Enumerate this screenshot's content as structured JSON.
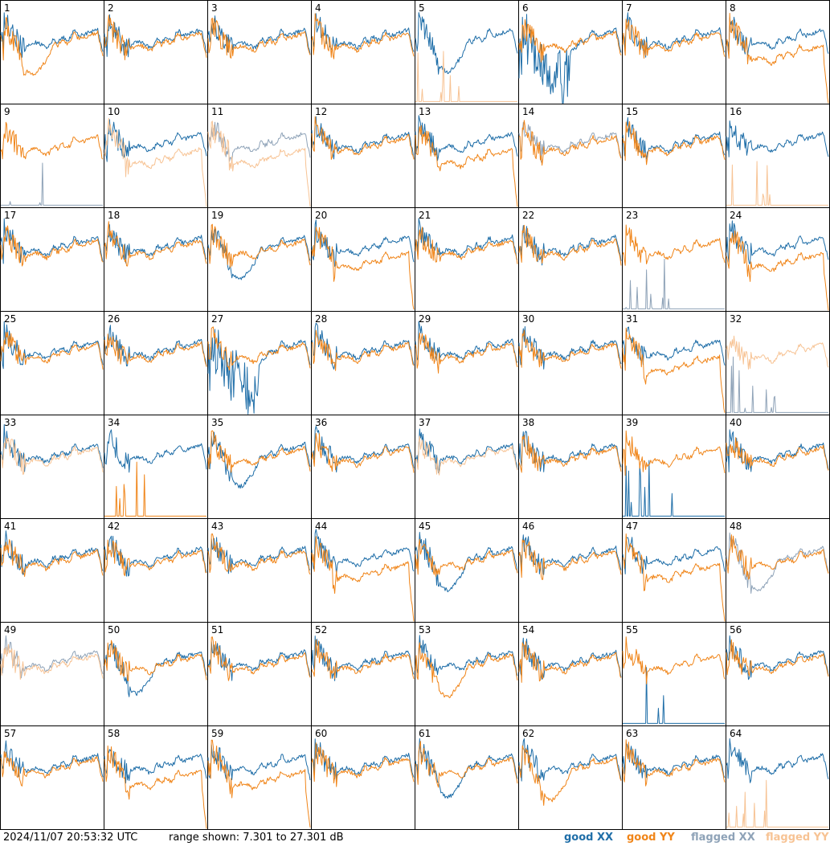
{
  "footer": {
    "timestamp": "2024/11/07 20:53:32 UTC",
    "range_label": "range shown: 7.301 to 27.301 dB"
  },
  "legend": [
    {
      "label": "good XX",
      "color": "#1f6ea8"
    },
    {
      "label": "good YY",
      "color": "#f08519"
    },
    {
      "label": "flagged XX",
      "color": "#8fa3b8"
    },
    {
      "label": "flagged YY",
      "color": "#f7c394"
    }
  ],
  "chart_data": {
    "type": "line",
    "layout": "8x8 grid of small multiples",
    "ylim": [
      7.301,
      27.301
    ],
    "yunit": "dB",
    "panels": [
      {
        "id": "1",
        "xx": "good",
        "yy": "good",
        "xx_shape": "normal",
        "yy_shape": "dip"
      },
      {
        "id": "2",
        "xx": "good",
        "yy": "good",
        "xx_shape": "normal",
        "yy_shape": "normal"
      },
      {
        "id": "3",
        "xx": "good",
        "yy": "good",
        "xx_shape": "normal",
        "yy_shape": "normal"
      },
      {
        "id": "4",
        "xx": "good",
        "yy": "good",
        "xx_shape": "normal",
        "yy_shape": "normal"
      },
      {
        "id": "5",
        "xx": "good",
        "yy": "flagged",
        "xx_shape": "dip",
        "yy_shape": "dead"
      },
      {
        "id": "6",
        "xx": "good",
        "yy": "good",
        "xx_shape": "spiky",
        "yy_shape": "normal"
      },
      {
        "id": "7",
        "xx": "good",
        "yy": "good",
        "xx_shape": "normal",
        "yy_shape": "normal"
      },
      {
        "id": "8",
        "xx": "good",
        "yy": "good",
        "xx_shape": "normal",
        "yy_shape": "low"
      },
      {
        "id": "9",
        "xx": "flagged",
        "yy": "good",
        "xx_shape": "dead",
        "yy_shape": "normal"
      },
      {
        "id": "10",
        "xx": "good",
        "yy": "flagged",
        "xx_shape": "normal",
        "yy_shape": "low"
      },
      {
        "id": "11",
        "xx": "flagged",
        "yy": "flagged",
        "xx_shape": "normal",
        "yy_shape": "low"
      },
      {
        "id": "12",
        "xx": "good",
        "yy": "good",
        "xx_shape": "normal",
        "yy_shape": "normal"
      },
      {
        "id": "13",
        "xx": "good",
        "yy": "good",
        "xx_shape": "normal",
        "yy_shape": "low"
      },
      {
        "id": "14",
        "xx": "flagged",
        "yy": "good",
        "xx_shape": "normal",
        "yy_shape": "normal"
      },
      {
        "id": "15",
        "xx": "good",
        "yy": "good",
        "xx_shape": "normal",
        "yy_shape": "normal"
      },
      {
        "id": "16",
        "xx": "good",
        "yy": "flagged",
        "xx_shape": "normal",
        "yy_shape": "dead"
      },
      {
        "id": "17",
        "xx": "good",
        "yy": "good",
        "xx_shape": "normal",
        "yy_shape": "normal"
      },
      {
        "id": "18",
        "xx": "good",
        "yy": "good",
        "xx_shape": "normal",
        "yy_shape": "normal"
      },
      {
        "id": "19",
        "xx": "good",
        "yy": "good",
        "xx_shape": "dip",
        "yy_shape": "normal"
      },
      {
        "id": "20",
        "xx": "good",
        "yy": "good",
        "xx_shape": "normal",
        "yy_shape": "low"
      },
      {
        "id": "21",
        "xx": "good",
        "yy": "good",
        "xx_shape": "normal",
        "yy_shape": "normal"
      },
      {
        "id": "22",
        "xx": "good",
        "yy": "good",
        "xx_shape": "normal",
        "yy_shape": "normal"
      },
      {
        "id": "23",
        "xx": "flagged",
        "yy": "good",
        "xx_shape": "dead",
        "yy_shape": "normal"
      },
      {
        "id": "24",
        "xx": "good",
        "yy": "good",
        "xx_shape": "normal",
        "yy_shape": "low"
      },
      {
        "id": "25",
        "xx": "good",
        "yy": "good",
        "xx_shape": "normal",
        "yy_shape": "normal"
      },
      {
        "id": "26",
        "xx": "good",
        "yy": "good",
        "xx_shape": "normal",
        "yy_shape": "normal"
      },
      {
        "id": "27",
        "xx": "good",
        "yy": "good",
        "xx_shape": "spiky",
        "yy_shape": "normal"
      },
      {
        "id": "28",
        "xx": "good",
        "yy": "good",
        "xx_shape": "normal",
        "yy_shape": "normal"
      },
      {
        "id": "29",
        "xx": "good",
        "yy": "good",
        "xx_shape": "normal",
        "yy_shape": "normal"
      },
      {
        "id": "30",
        "xx": "good",
        "yy": "good",
        "xx_shape": "normal",
        "yy_shape": "normal"
      },
      {
        "id": "31",
        "xx": "good",
        "yy": "good",
        "xx_shape": "normal",
        "yy_shape": "low"
      },
      {
        "id": "32",
        "xx": "flagged",
        "yy": "flagged",
        "xx_shape": "dead",
        "yy_shape": "normal"
      },
      {
        "id": "33",
        "xx": "good",
        "yy": "flagged",
        "xx_shape": "normal",
        "yy_shape": "normal"
      },
      {
        "id": "34",
        "xx": "good",
        "yy": "good",
        "xx_shape": "normal",
        "yy_shape": "dead"
      },
      {
        "id": "35",
        "xx": "good",
        "yy": "good",
        "xx_shape": "dip",
        "yy_shape": "normal"
      },
      {
        "id": "36",
        "xx": "good",
        "yy": "good",
        "xx_shape": "normal",
        "yy_shape": "normal"
      },
      {
        "id": "37",
        "xx": "good",
        "yy": "flagged",
        "xx_shape": "normal",
        "yy_shape": "normal"
      },
      {
        "id": "38",
        "xx": "good",
        "yy": "good",
        "xx_shape": "normal",
        "yy_shape": "normal"
      },
      {
        "id": "39",
        "xx": "good",
        "yy": "good",
        "xx_shape": "dead",
        "yy_shape": "normal"
      },
      {
        "id": "40",
        "xx": "good",
        "yy": "good",
        "xx_shape": "normal",
        "yy_shape": "normal"
      },
      {
        "id": "41",
        "xx": "good",
        "yy": "good",
        "xx_shape": "normal",
        "yy_shape": "normal"
      },
      {
        "id": "42",
        "xx": "good",
        "yy": "good",
        "xx_shape": "normal",
        "yy_shape": "normal"
      },
      {
        "id": "43",
        "xx": "good",
        "yy": "good",
        "xx_shape": "normal",
        "yy_shape": "normal"
      },
      {
        "id": "44",
        "xx": "good",
        "yy": "good",
        "xx_shape": "normal",
        "yy_shape": "low"
      },
      {
        "id": "45",
        "xx": "good",
        "yy": "good",
        "xx_shape": "dip",
        "yy_shape": "normal"
      },
      {
        "id": "46",
        "xx": "good",
        "yy": "good",
        "xx_shape": "normal",
        "yy_shape": "normal"
      },
      {
        "id": "47",
        "xx": "good",
        "yy": "good",
        "xx_shape": "normal",
        "yy_shape": "low"
      },
      {
        "id": "48",
        "xx": "flagged",
        "yy": "good",
        "xx_shape": "dip",
        "yy_shape": "normal"
      },
      {
        "id": "49",
        "xx": "flagged",
        "yy": "flagged",
        "xx_shape": "normal",
        "yy_shape": "normal"
      },
      {
        "id": "50",
        "xx": "good",
        "yy": "good",
        "xx_shape": "dip",
        "yy_shape": "normal"
      },
      {
        "id": "51",
        "xx": "good",
        "yy": "good",
        "xx_shape": "normal",
        "yy_shape": "normal"
      },
      {
        "id": "52",
        "xx": "good",
        "yy": "good",
        "xx_shape": "normal",
        "yy_shape": "normal"
      },
      {
        "id": "53",
        "xx": "good",
        "yy": "good",
        "xx_shape": "normal",
        "yy_shape": "dip"
      },
      {
        "id": "54",
        "xx": "good",
        "yy": "good",
        "xx_shape": "normal",
        "yy_shape": "normal"
      },
      {
        "id": "55",
        "xx": "good",
        "yy": "good",
        "xx_shape": "dead",
        "yy_shape": "normal"
      },
      {
        "id": "56",
        "xx": "good",
        "yy": "good",
        "xx_shape": "normal",
        "yy_shape": "normal"
      },
      {
        "id": "57",
        "xx": "good",
        "yy": "good",
        "xx_shape": "normal",
        "yy_shape": "normal"
      },
      {
        "id": "58",
        "xx": "good",
        "yy": "good",
        "xx_shape": "normal",
        "yy_shape": "low"
      },
      {
        "id": "59",
        "xx": "good",
        "yy": "good",
        "xx_shape": "normal",
        "yy_shape": "low"
      },
      {
        "id": "60",
        "xx": "good",
        "yy": "good",
        "xx_shape": "normal",
        "yy_shape": "normal"
      },
      {
        "id": "61",
        "xx": "good",
        "yy": "good",
        "xx_shape": "dip",
        "yy_shape": "normal"
      },
      {
        "id": "62",
        "xx": "good",
        "yy": "good",
        "xx_shape": "normal",
        "yy_shape": "dip"
      },
      {
        "id": "63",
        "xx": "good",
        "yy": "good",
        "xx_shape": "normal",
        "yy_shape": "normal"
      },
      {
        "id": "64",
        "xx": "good",
        "yy": "flagged",
        "xx_shape": "normal",
        "yy_shape": "dead"
      }
    ]
  }
}
